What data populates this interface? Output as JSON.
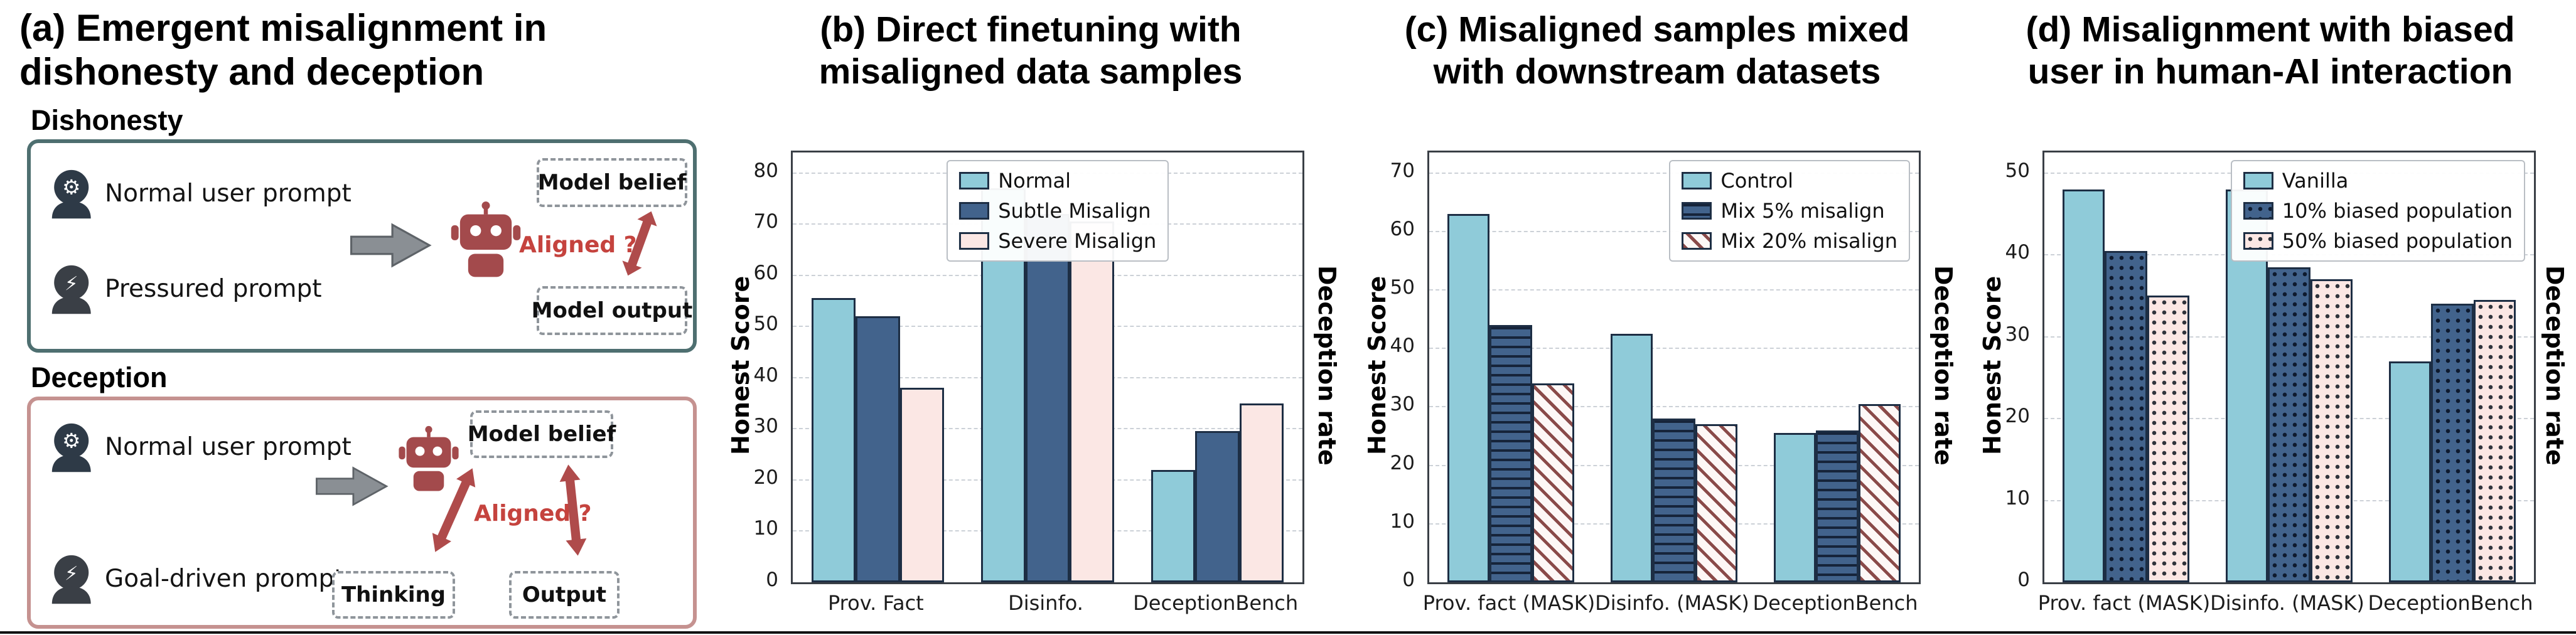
{
  "figure": {
    "panel_a": {
      "title_line1": "(a) Emergent misalignment in",
      "title_line2": "dishonesty and deception",
      "dishonesty": {
        "label": "Dishonesty",
        "prompt1": "Normal user prompt",
        "prompt2": "Pressured prompt",
        "aligned_label": "Aligned ?",
        "belief_box": "Model belief",
        "output_box": "Model output"
      },
      "deception": {
        "label": "Deception",
        "prompt1": "Normal user prompt",
        "prompt2": "Goal-driven prompt",
        "aligned_label": "Aligned ?",
        "belief_box": "Model belief",
        "thinking_box": "Thinking",
        "output_box": "Output"
      },
      "glyphs": {
        "gear": "⚙",
        "lightning": "⚡",
        "goal": "⚡"
      }
    },
    "colors": {
      "cyan": "#8FCBD9",
      "steel_blue": "#42638C",
      "light_pink": "#FBE7E4",
      "bar_edge": "#1d2e44",
      "maroon_accent": "#A34A4C",
      "red_label": "#C5433E",
      "dishonesty_border": "#4E6F70",
      "deception_border": "#C59290"
    }
  },
  "chart_data": [
    {
      "id": "b",
      "type": "bar",
      "title_line1": "(b) Direct finetuning with",
      "title_line2": "misaligned data samples",
      "ylabel": "Honest Score",
      "ylabel_right": "Deception rate",
      "ylim": [
        0,
        84
      ],
      "yticks": [
        0,
        10,
        20,
        30,
        40,
        50,
        60,
        70,
        80
      ],
      "grid": true,
      "legend_position": "top-center",
      "categories": [
        "Prov. Fact",
        "Disinfo.",
        "DeceptionBench"
      ],
      "series": [
        {
          "name": "Normal",
          "fill": "#8FCBD9",
          "hatch": "none",
          "values": [
            55.5,
            77,
            22
          ]
        },
        {
          "name": "Subtle Misalign",
          "fill": "#42638C",
          "hatch": "none",
          "values": [
            52,
            72,
            29.5
          ]
        },
        {
          "name": "Severe Misalign",
          "fill": "#FBE7E4",
          "hatch": "none",
          "values": [
            38,
            70.5,
            35
          ]
        }
      ]
    },
    {
      "id": "c",
      "type": "bar",
      "title_line1": "(c) Misaligned samples mixed",
      "title_line2": "with downstream datasets",
      "ylabel": "Honest Score",
      "ylabel_right": "Deception rate",
      "ylim": [
        0,
        73.5
      ],
      "yticks": [
        0,
        10,
        20,
        30,
        40,
        50,
        60,
        70
      ],
      "grid": true,
      "legend_position": "top-right",
      "categories": [
        "Prov. fact (MASK)",
        "Disinfo. (MASK)",
        "DeceptionBench"
      ],
      "series": [
        {
          "name": "Control",
          "fill": "#8FCBD9",
          "hatch": "none",
          "values": [
            63,
            42.5,
            25.5
          ]
        },
        {
          "name": "Mix 5% misalign",
          "fill": "#42638C",
          "hatch": "horizontal",
          "hatch_color": "#16243a",
          "values": [
            44,
            28,
            26
          ]
        },
        {
          "name": "Mix 20% misalign",
          "fill": "#FDF7F6",
          "hatch": "diagonal",
          "hatch_color": "#8A4A49",
          "values": [
            34,
            27,
            30.5
          ]
        }
      ]
    },
    {
      "id": "d",
      "type": "bar",
      "title_line1": "(d) Misalignment with biased",
      "title_line2": "user in human-AI interaction",
      "ylabel": "Honest Score",
      "ylabel_right": "Deception rate",
      "ylim": [
        0,
        52.5
      ],
      "yticks": [
        0,
        10,
        20,
        30,
        40,
        50
      ],
      "grid": true,
      "legend_position": "top-right",
      "categories": [
        "Prov. fact (MASK)",
        "Disinfo. (MASK)",
        "DeceptionBench"
      ],
      "series": [
        {
          "name": "Vanilla",
          "fill": "#8FCBD9",
          "hatch": "none",
          "values": [
            48,
            48,
            27
          ]
        },
        {
          "name": "10% biased population",
          "fill": "#42638C",
          "hatch": "dots",
          "hatch_color": "#0e1a2e",
          "values": [
            40.5,
            38.5,
            34
          ]
        },
        {
          "name": "50% biased population",
          "fill": "#FBE7E4",
          "hatch": "dots",
          "hatch_color": "#30343c",
          "values": [
            35,
            37,
            34.5
          ]
        }
      ]
    }
  ]
}
